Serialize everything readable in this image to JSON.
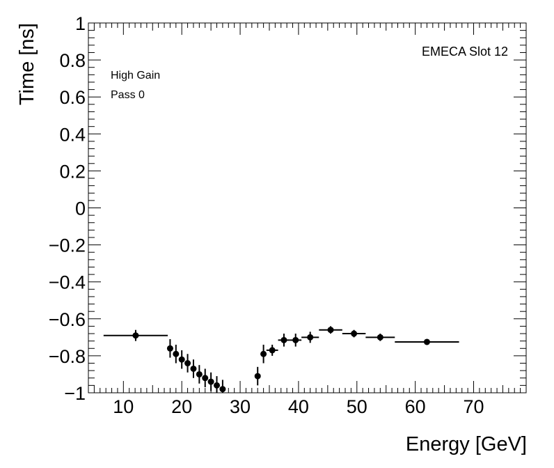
{
  "chart_data": {
    "type": "scatter",
    "title": "",
    "xlabel": "Energy [GeV]",
    "ylabel": "Time [ns]",
    "xlim": [
      4,
      79
    ],
    "ylim": [
      -1,
      1
    ],
    "xticks": [
      10,
      20,
      30,
      40,
      50,
      60,
      70
    ],
    "xtick_labels": [
      "10",
      "20",
      "30",
      "40",
      "50",
      "60",
      "70"
    ],
    "yticks": [
      -1,
      -0.8,
      -0.6,
      -0.4,
      -0.2,
      0,
      0.2,
      0.4,
      0.6,
      0.8,
      1
    ],
    "ytick_labels": [
      "−1",
      "−0.8",
      "−0.6",
      "−0.4",
      "−0.2",
      "0",
      "0.2",
      "0.4",
      "0.6",
      "0.8",
      "1"
    ],
    "grid": false,
    "annotations": {
      "gain": "High Gain",
      "pass": "Pass 0",
      "slot": "EMECA Slot 12"
    },
    "points": [
      {
        "x": 12.1,
        "y": -0.69,
        "xerr_lo": 5.5,
        "xerr_hi": 5.5,
        "yerr": 0.03
      },
      {
        "x": 18.0,
        "y": -0.76,
        "xerr_lo": 0.5,
        "xerr_hi": 0.5,
        "yerr": 0.05
      },
      {
        "x": 19.0,
        "y": -0.79,
        "xerr_lo": 0.5,
        "xerr_hi": 0.5,
        "yerr": 0.05
      },
      {
        "x": 20.0,
        "y": -0.82,
        "xerr_lo": 0.5,
        "xerr_hi": 0.5,
        "yerr": 0.05
      },
      {
        "x": 21.0,
        "y": -0.84,
        "xerr_lo": 0.5,
        "xerr_hi": 0.5,
        "yerr": 0.05
      },
      {
        "x": 22.0,
        "y": -0.87,
        "xerr_lo": 0.5,
        "xerr_hi": 0.5,
        "yerr": 0.05
      },
      {
        "x": 23.0,
        "y": -0.9,
        "xerr_lo": 0.5,
        "xerr_hi": 0.5,
        "yerr": 0.05
      },
      {
        "x": 24.0,
        "y": -0.92,
        "xerr_lo": 0.5,
        "xerr_hi": 0.5,
        "yerr": 0.05
      },
      {
        "x": 25.0,
        "y": -0.94,
        "xerr_lo": 0.5,
        "xerr_hi": 0.5,
        "yerr": 0.05
      },
      {
        "x": 26.0,
        "y": -0.96,
        "xerr_lo": 0.5,
        "xerr_hi": 0.5,
        "yerr": 0.05
      },
      {
        "x": 27.0,
        "y": -0.98,
        "xerr_lo": 0.5,
        "xerr_hi": 0.5,
        "yerr": 0.05
      },
      {
        "x": 33.0,
        "y": -0.91,
        "xerr_lo": 0.5,
        "xerr_hi": 0.5,
        "yerr": 0.05
      },
      {
        "x": 34.0,
        "y": -0.79,
        "xerr_lo": 0.5,
        "xerr_hi": 0.5,
        "yerr": 0.05
      },
      {
        "x": 35.5,
        "y": -0.77,
        "xerr_lo": 1.0,
        "xerr_hi": 1.0,
        "yerr": 0.03
      },
      {
        "x": 37.5,
        "y": -0.715,
        "xerr_lo": 1.0,
        "xerr_hi": 1.0,
        "yerr": 0.035
      },
      {
        "x": 39.5,
        "y": -0.715,
        "xerr_lo": 1.0,
        "xerr_hi": 1.0,
        "yerr": 0.035
      },
      {
        "x": 42.0,
        "y": -0.7,
        "xerr_lo": 1.5,
        "xerr_hi": 1.5,
        "yerr": 0.03
      },
      {
        "x": 45.5,
        "y": -0.66,
        "xerr_lo": 2.0,
        "xerr_hi": 2.0,
        "yerr": 0.02
      },
      {
        "x": 49.5,
        "y": -0.68,
        "xerr_lo": 2.0,
        "xerr_hi": 2.0,
        "yerr": 0.02
      },
      {
        "x": 54.0,
        "y": -0.7,
        "xerr_lo": 2.5,
        "xerr_hi": 2.5,
        "yerr": 0.02
      },
      {
        "x": 62.0,
        "y": -0.725,
        "xerr_lo": 5.5,
        "xerr_hi": 5.5,
        "yerr": 0.015
      }
    ]
  }
}
